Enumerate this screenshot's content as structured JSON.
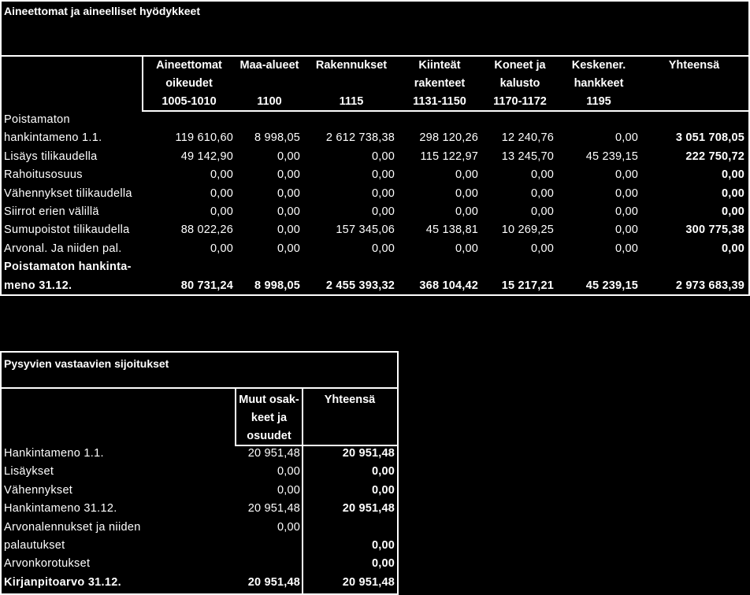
{
  "assets": {
    "title": "Aineettomat ja aineelliset hyödykkeet",
    "columns": [
      {
        "l1": "Aineettomat",
        "l2": "oikeudet",
        "code": "1005-1010"
      },
      {
        "l1": "Maa-alueet",
        "l2": "",
        "code": "1100"
      },
      {
        "l1": "Rakennukset",
        "l2": "",
        "code": "1115"
      },
      {
        "l1": "Kiinteät",
        "l2": "rakenteet",
        "code": "1131-1150"
      },
      {
        "l1": "Koneet ja",
        "l2": "kalusto",
        "code": "1170-1172"
      },
      {
        "l1": "Keskener.",
        "l2": "hankkeet",
        "code": "1195"
      },
      {
        "l1": "Yhteensä",
        "l2": "",
        "code": ""
      }
    ],
    "rows": [
      {
        "label1": "Poistamaton",
        "label2": "hankintameno 1.1.",
        "values": [
          "119 610,60",
          "8 998,05",
          "2 612 738,38",
          "298 120,26",
          "12 240,76",
          "0,00",
          "3 051 708,05"
        ]
      },
      {
        "label": "Lisäys tilikaudella",
        "values": [
          "49 142,90",
          "0,00",
          "0,00",
          "115 122,97",
          "13 245,70",
          "45 239,15",
          "222 750,72"
        ]
      },
      {
        "label": "Rahoitusosuus",
        "values": [
          "0,00",
          "0,00",
          "0,00",
          "0,00",
          "0,00",
          "0,00",
          "0,00"
        ]
      },
      {
        "label": "Vähennykset tilikaudella",
        "values": [
          "0,00",
          "0,00",
          "0,00",
          "0,00",
          "0,00",
          "0,00",
          "0,00"
        ]
      },
      {
        "label": "Siirrot erien välillä",
        "values": [
          "0,00",
          "0,00",
          "0,00",
          "0,00",
          "0,00",
          "0,00",
          "0,00"
        ]
      },
      {
        "label": "Sumupoistot tilikaudella",
        "values": [
          "88 022,26",
          "0,00",
          "157 345,06",
          "45 138,81",
          "10 269,25",
          "0,00",
          "300 775,38"
        ]
      },
      {
        "label": "Arvonal. Ja niiden pal.",
        "values": [
          "0,00",
          "0,00",
          "0,00",
          "0,00",
          "0,00",
          "0,00",
          "0,00"
        ]
      },
      {
        "label1": "Poistamaton hankinta-",
        "label2": "meno 31.12.",
        "values": [
          "80 731,24",
          "8 998,05",
          "2 455 393,32",
          "368 104,42",
          "15 217,21",
          "45 239,15",
          "2 973 683,39"
        ]
      }
    ]
  },
  "investments": {
    "title": "Pysyvien vastaavien sijoitukset",
    "col1": [
      "Muut osak-",
      "keet ja",
      "osuudet"
    ],
    "col2": "Yhteensä",
    "rows": [
      {
        "label": "Hankintameno 1.1.",
        "v1": "20 951,48",
        "v2": "20 951,48"
      },
      {
        "label": "Lisäykset",
        "v1": "0,00",
        "v2": "0,00"
      },
      {
        "label": "Vähennykset",
        "v1": "0,00",
        "v2": "0,00"
      },
      {
        "label": "Hankintameno 31.12.",
        "v1": "20 951,48",
        "v2": "20 951,48"
      },
      {
        "label": "Arvonalennukset ja niiden",
        "v1": "0,00",
        "v2": ""
      },
      {
        "label": "palautukset",
        "v1": "",
        "v2": "0,00"
      },
      {
        "label": "Arvonkorotukset",
        "v1": "",
        "v2": "0,00"
      },
      {
        "label": "Kirjanpitoarvo 31.12.",
        "v1": "20 951,48",
        "v2": "20 951,48"
      }
    ]
  }
}
